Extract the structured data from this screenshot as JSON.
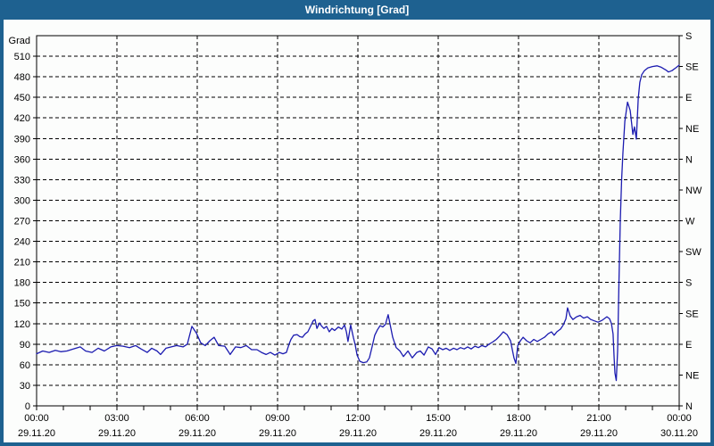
{
  "window": {
    "title": "Windrichtung [Grad]"
  },
  "colors": {
    "titlebar": "#1E6190",
    "frame": "#1E6190",
    "plot_bg": "#FCFDFC",
    "grid": "#000000",
    "line": "#1B1BB0"
  },
  "chart_data": {
    "type": "line",
    "title": "Windrichtung [Grad]",
    "grid": "dashed",
    "legend": "none",
    "y_left": {
      "label": "Grad",
      "min": 0,
      "max": 540,
      "tick_step": 30,
      "tick_labels": [
        "0",
        "30",
        "60",
        "90",
        "120",
        "150",
        "180",
        "210",
        "240",
        "270",
        "300",
        "330",
        "360",
        "390",
        "420",
        "450",
        "480",
        "510"
      ]
    },
    "y_right": {
      "tick_step_deg": 45,
      "labels_top_to_bottom": [
        "S",
        "SE",
        "E",
        "NE",
        "N",
        "NW",
        "W",
        "SW",
        "S",
        "SE",
        "E",
        "NE",
        "N"
      ]
    },
    "x": {
      "min_hour": 0,
      "max_hour": 24,
      "label_step_hours": 3,
      "minor_tick_hours": 1,
      "tick_labels": [
        {
          "time": "00:00",
          "date": "29.11.20"
        },
        {
          "time": "03:00",
          "date": "29.11.20"
        },
        {
          "time": "06:00",
          "date": "29.11.20"
        },
        {
          "time": "09:00",
          "date": "29.11.20"
        },
        {
          "time": "12:00",
          "date": "29.11.20"
        },
        {
          "time": "15:00",
          "date": "29.11.20"
        },
        {
          "time": "18:00",
          "date": "29.11.20"
        },
        {
          "time": "21:00",
          "date": "29.11.20"
        },
        {
          "time": "00:00",
          "date": "30.11.20"
        }
      ]
    },
    "series": [
      {
        "name": "Windrichtung",
        "unit": "Grad",
        "color": "#1B1BB0",
        "points": [
          [
            0,
            76
          ],
          [
            0.23,
            80
          ],
          [
            0.47,
            78
          ],
          [
            0.7,
            81
          ],
          [
            0.9,
            79
          ],
          [
            1.13,
            80
          ],
          [
            1.37,
            83
          ],
          [
            1.63,
            86
          ],
          [
            1.83,
            80
          ],
          [
            2.07,
            78
          ],
          [
            2.3,
            84
          ],
          [
            2.53,
            80
          ],
          [
            2.77,
            86
          ],
          [
            3,
            88
          ],
          [
            3.23,
            87
          ],
          [
            3.47,
            85
          ],
          [
            3.7,
            88
          ],
          [
            3.9,
            83
          ],
          [
            4.13,
            78
          ],
          [
            4.3,
            84
          ],
          [
            4.5,
            80
          ],
          [
            4.63,
            75
          ],
          [
            4.83,
            84
          ],
          [
            5.03,
            86
          ],
          [
            5.23,
            88
          ],
          [
            5.47,
            86
          ],
          [
            5.63,
            90
          ],
          [
            5.8,
            116
          ],
          [
            5.97,
            106
          ],
          [
            6.13,
            92
          ],
          [
            6.3,
            88
          ],
          [
            6.47,
            95
          ],
          [
            6.63,
            100
          ],
          [
            6.8,
            88
          ],
          [
            7.03,
            87
          ],
          [
            7.23,
            75
          ],
          [
            7.43,
            86
          ],
          [
            7.63,
            85
          ],
          [
            7.83,
            88
          ],
          [
            8.03,
            82
          ],
          [
            8.23,
            82
          ],
          [
            8.4,
            78
          ],
          [
            8.57,
            75
          ],
          [
            8.73,
            78
          ],
          [
            8.9,
            74
          ],
          [
            9.07,
            78
          ],
          [
            9.2,
            76
          ],
          [
            9.33,
            78
          ],
          [
            9.43,
            90
          ],
          [
            9.5,
            97
          ],
          [
            9.6,
            103
          ],
          [
            9.73,
            104
          ],
          [
            9.83,
            101
          ],
          [
            9.93,
            100
          ],
          [
            10.03,
            105
          ],
          [
            10.13,
            108
          ],
          [
            10.23,
            116
          ],
          [
            10.33,
            124
          ],
          [
            10.4,
            126
          ],
          [
            10.47,
            113
          ],
          [
            10.57,
            121
          ],
          [
            10.63,
            117
          ],
          [
            10.73,
            113
          ],
          [
            10.83,
            116
          ],
          [
            10.93,
            108
          ],
          [
            11.03,
            113
          ],
          [
            11.13,
            110
          ],
          [
            11.27,
            115
          ],
          [
            11.4,
            112
          ],
          [
            11.5,
            118
          ],
          [
            11.57,
            108
          ],
          [
            11.63,
            94
          ],
          [
            11.73,
            118
          ],
          [
            11.83,
            100
          ],
          [
            11.9,
            89
          ],
          [
            11.97,
            74
          ],
          [
            12.07,
            65
          ],
          [
            12.2,
            63
          ],
          [
            12.33,
            64
          ],
          [
            12.43,
            70
          ],
          [
            12.53,
            86
          ],
          [
            12.63,
            103
          ],
          [
            12.73,
            111
          ],
          [
            12.83,
            117
          ],
          [
            12.93,
            115
          ],
          [
            13.03,
            119
          ],
          [
            13.13,
            133
          ],
          [
            13.3,
            100
          ],
          [
            13.43,
            85
          ],
          [
            13.57,
            80
          ],
          [
            13.7,
            72
          ],
          [
            13.87,
            80
          ],
          [
            14.03,
            70
          ],
          [
            14.2,
            78
          ],
          [
            14.33,
            80
          ],
          [
            14.47,
            74
          ],
          [
            14.63,
            86
          ],
          [
            14.77,
            83
          ],
          [
            14.9,
            75
          ],
          [
            15.03,
            85
          ],
          [
            15.17,
            82
          ],
          [
            15.3,
            84
          ],
          [
            15.43,
            81
          ],
          [
            15.57,
            84
          ],
          [
            15.7,
            82
          ],
          [
            15.83,
            85
          ],
          [
            15.97,
            83
          ],
          [
            16.1,
            86
          ],
          [
            16.23,
            83
          ],
          [
            16.37,
            87
          ],
          [
            16.5,
            85
          ],
          [
            16.63,
            88
          ],
          [
            16.77,
            86
          ],
          [
            16.9,
            90
          ],
          [
            17.03,
            93
          ],
          [
            17.17,
            97
          ],
          [
            17.3,
            102
          ],
          [
            17.43,
            108
          ],
          [
            17.57,
            104
          ],
          [
            17.7,
            95
          ],
          [
            17.83,
            70
          ],
          [
            17.9,
            62
          ],
          [
            17.97,
            88
          ],
          [
            18.07,
            95
          ],
          [
            18.17,
            100
          ],
          [
            18.3,
            95
          ],
          [
            18.43,
            92
          ],
          [
            18.57,
            97
          ],
          [
            18.7,
            94
          ],
          [
            18.83,
            97
          ],
          [
            18.97,
            100
          ],
          [
            19.1,
            105
          ],
          [
            19.23,
            108
          ],
          [
            19.33,
            103
          ],
          [
            19.43,
            108
          ],
          [
            19.57,
            112
          ],
          [
            19.67,
            118
          ],
          [
            19.77,
            127
          ],
          [
            19.83,
            143
          ],
          [
            19.93,
            131
          ],
          [
            20.03,
            126
          ],
          [
            20.17,
            130
          ],
          [
            20.3,
            132
          ],
          [
            20.43,
            128
          ],
          [
            20.57,
            130
          ],
          [
            20.7,
            126
          ],
          [
            20.83,
            124
          ],
          [
            20.97,
            122
          ],
          [
            21.13,
            125
          ],
          [
            21.3,
            130
          ],
          [
            21.4,
            127
          ],
          [
            21.47,
            120
          ],
          [
            21.53,
            105
          ],
          [
            21.57,
            70
          ],
          [
            21.6,
            48
          ],
          [
            21.65,
            37
          ],
          [
            21.7,
            80
          ],
          [
            21.75,
            180
          ],
          [
            21.8,
            270
          ],
          [
            21.85,
            330
          ],
          [
            21.9,
            370
          ],
          [
            21.97,
            415
          ],
          [
            22.07,
            443
          ],
          [
            22.17,
            431
          ],
          [
            22.27,
            396
          ],
          [
            22.33,
            407
          ],
          [
            22.4,
            389
          ],
          [
            22.47,
            448
          ],
          [
            22.53,
            472
          ],
          [
            22.6,
            483
          ],
          [
            22.7,
            489
          ],
          [
            22.83,
            493
          ],
          [
            23,
            495
          ],
          [
            23.17,
            496
          ],
          [
            23.33,
            494
          ],
          [
            23.5,
            490
          ],
          [
            23.6,
            487
          ],
          [
            23.73,
            489
          ],
          [
            23.87,
            493
          ],
          [
            24,
            497
          ]
        ]
      }
    ]
  }
}
